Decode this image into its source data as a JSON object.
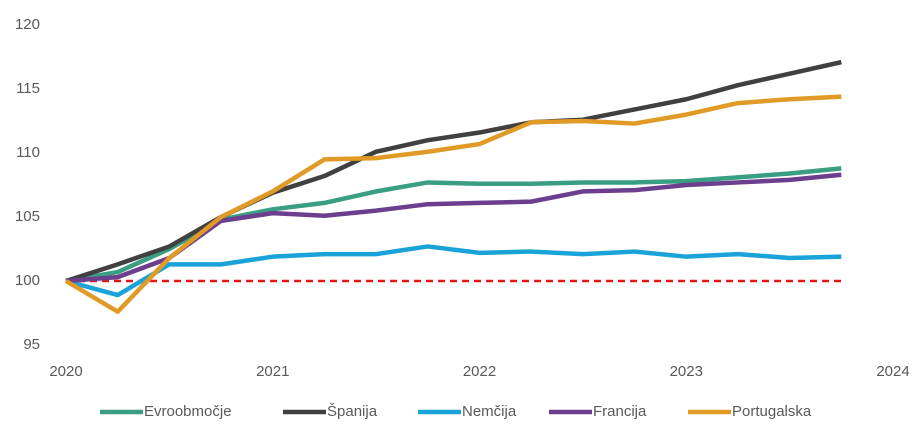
{
  "chart_data": {
    "type": "line",
    "x": [
      2020,
      2020.25,
      2020.5,
      2020.75,
      2021,
      2021.25,
      2021.5,
      2021.75,
      2022,
      2022.25,
      2022.5,
      2022.75,
      2023,
      2023.25,
      2023.5,
      2023.75
    ],
    "series": [
      {
        "name": "Evroobmočje",
        "color": "#3a9e82",
        "values": [
          100,
          100.7,
          102.5,
          104.8,
          105.6,
          106.1,
          107.0,
          107.7,
          107.6,
          107.6,
          107.7,
          107.7,
          107.8,
          108.1,
          108.4,
          108.8
        ]
      },
      {
        "name": "Španija",
        "color": "#404040",
        "values": [
          100,
          101.3,
          102.7,
          105.0,
          106.9,
          108.2,
          110.1,
          111.0,
          111.6,
          112.4,
          112.6,
          113.4,
          114.2,
          115.3,
          116.2,
          117.1
        ]
      },
      {
        "name": "Nemčija",
        "color": "#1aa3d9",
        "values": [
          100,
          98.9,
          101.3,
          101.3,
          101.9,
          102.1,
          102.1,
          102.7,
          102.2,
          102.3,
          102.1,
          102.3,
          101.9,
          102.1,
          101.8,
          101.9
        ]
      },
      {
        "name": "Francija",
        "color": "#6b3e8e",
        "values": [
          100,
          100.3,
          101.8,
          104.7,
          105.3,
          105.1,
          105.5,
          106.0,
          106.1,
          106.2,
          107.0,
          107.1,
          107.5,
          107.7,
          107.9,
          108.3
        ]
      },
      {
        "name": "Portugalska",
        "color": "#e09a25",
        "values": [
          100,
          97.6,
          101.8,
          105.0,
          107.0,
          109.5,
          109.6,
          110.1,
          110.7,
          112.4,
          112.5,
          112.3,
          113.0,
          113.9,
          114.2,
          114.4
        ]
      }
    ],
    "reference_line": {
      "value": 100,
      "color": "#e8141c"
    },
    "xlim": [
      2020,
      2024
    ],
    "xticks": [
      2020,
      2021,
      2022,
      2023,
      2024
    ],
    "ylim": [
      95,
      120
    ],
    "yticks": [
      95,
      100,
      105,
      110,
      115,
      120
    ],
    "grid": false,
    "legend": "bottom"
  }
}
